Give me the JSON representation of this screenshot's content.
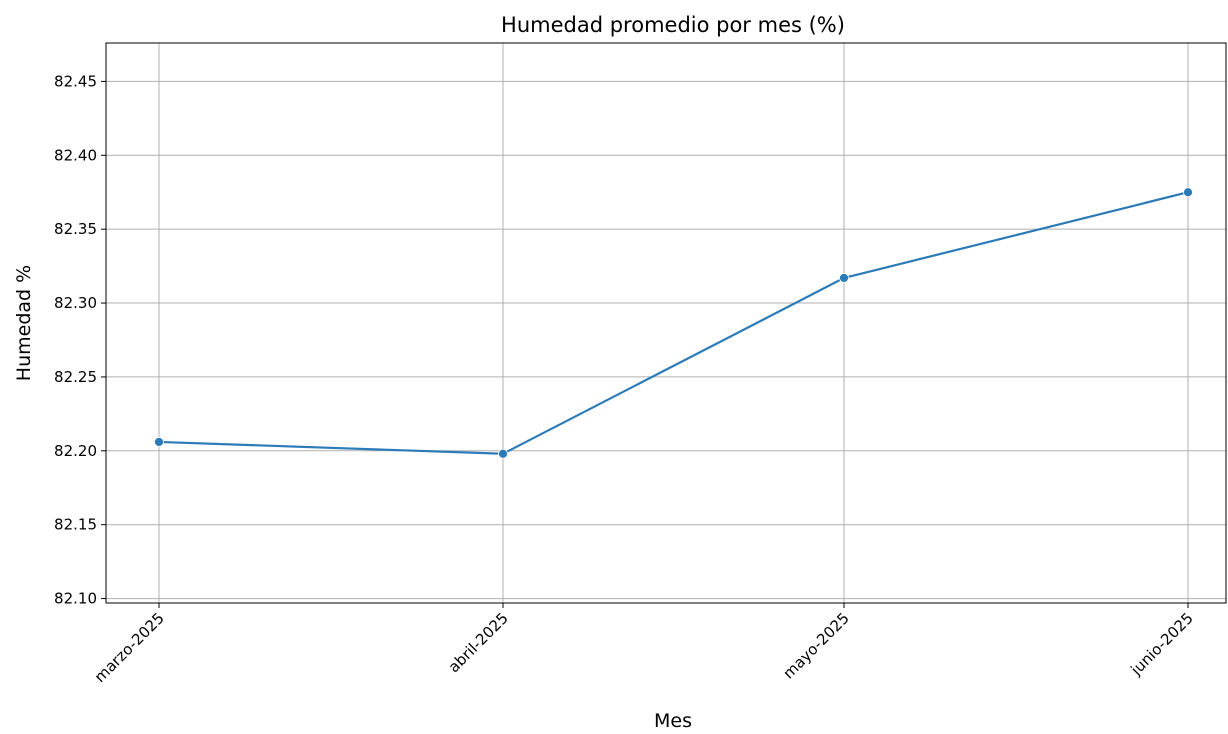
{
  "chart_data": {
    "type": "line",
    "title": "Humedad promedio por mes (%)",
    "xlabel": "Mes",
    "ylabel": "Humedad %",
    "categories": [
      "marzo-2025",
      "abril-2025",
      "mayo-2025",
      "junio-2025"
    ],
    "series": [
      {
        "values": [
          82.206,
          82.198,
          82.317,
          82.375
        ],
        "color": "#2b7bb9"
      }
    ],
    "ylim": [
      82.097,
      82.476
    ],
    "yticks": [
      "82.10",
      "82.15",
      "82.20",
      "82.25",
      "82.30",
      "82.35",
      "82.40",
      "82.45"
    ],
    "grid": true,
    "marker": "circle"
  }
}
